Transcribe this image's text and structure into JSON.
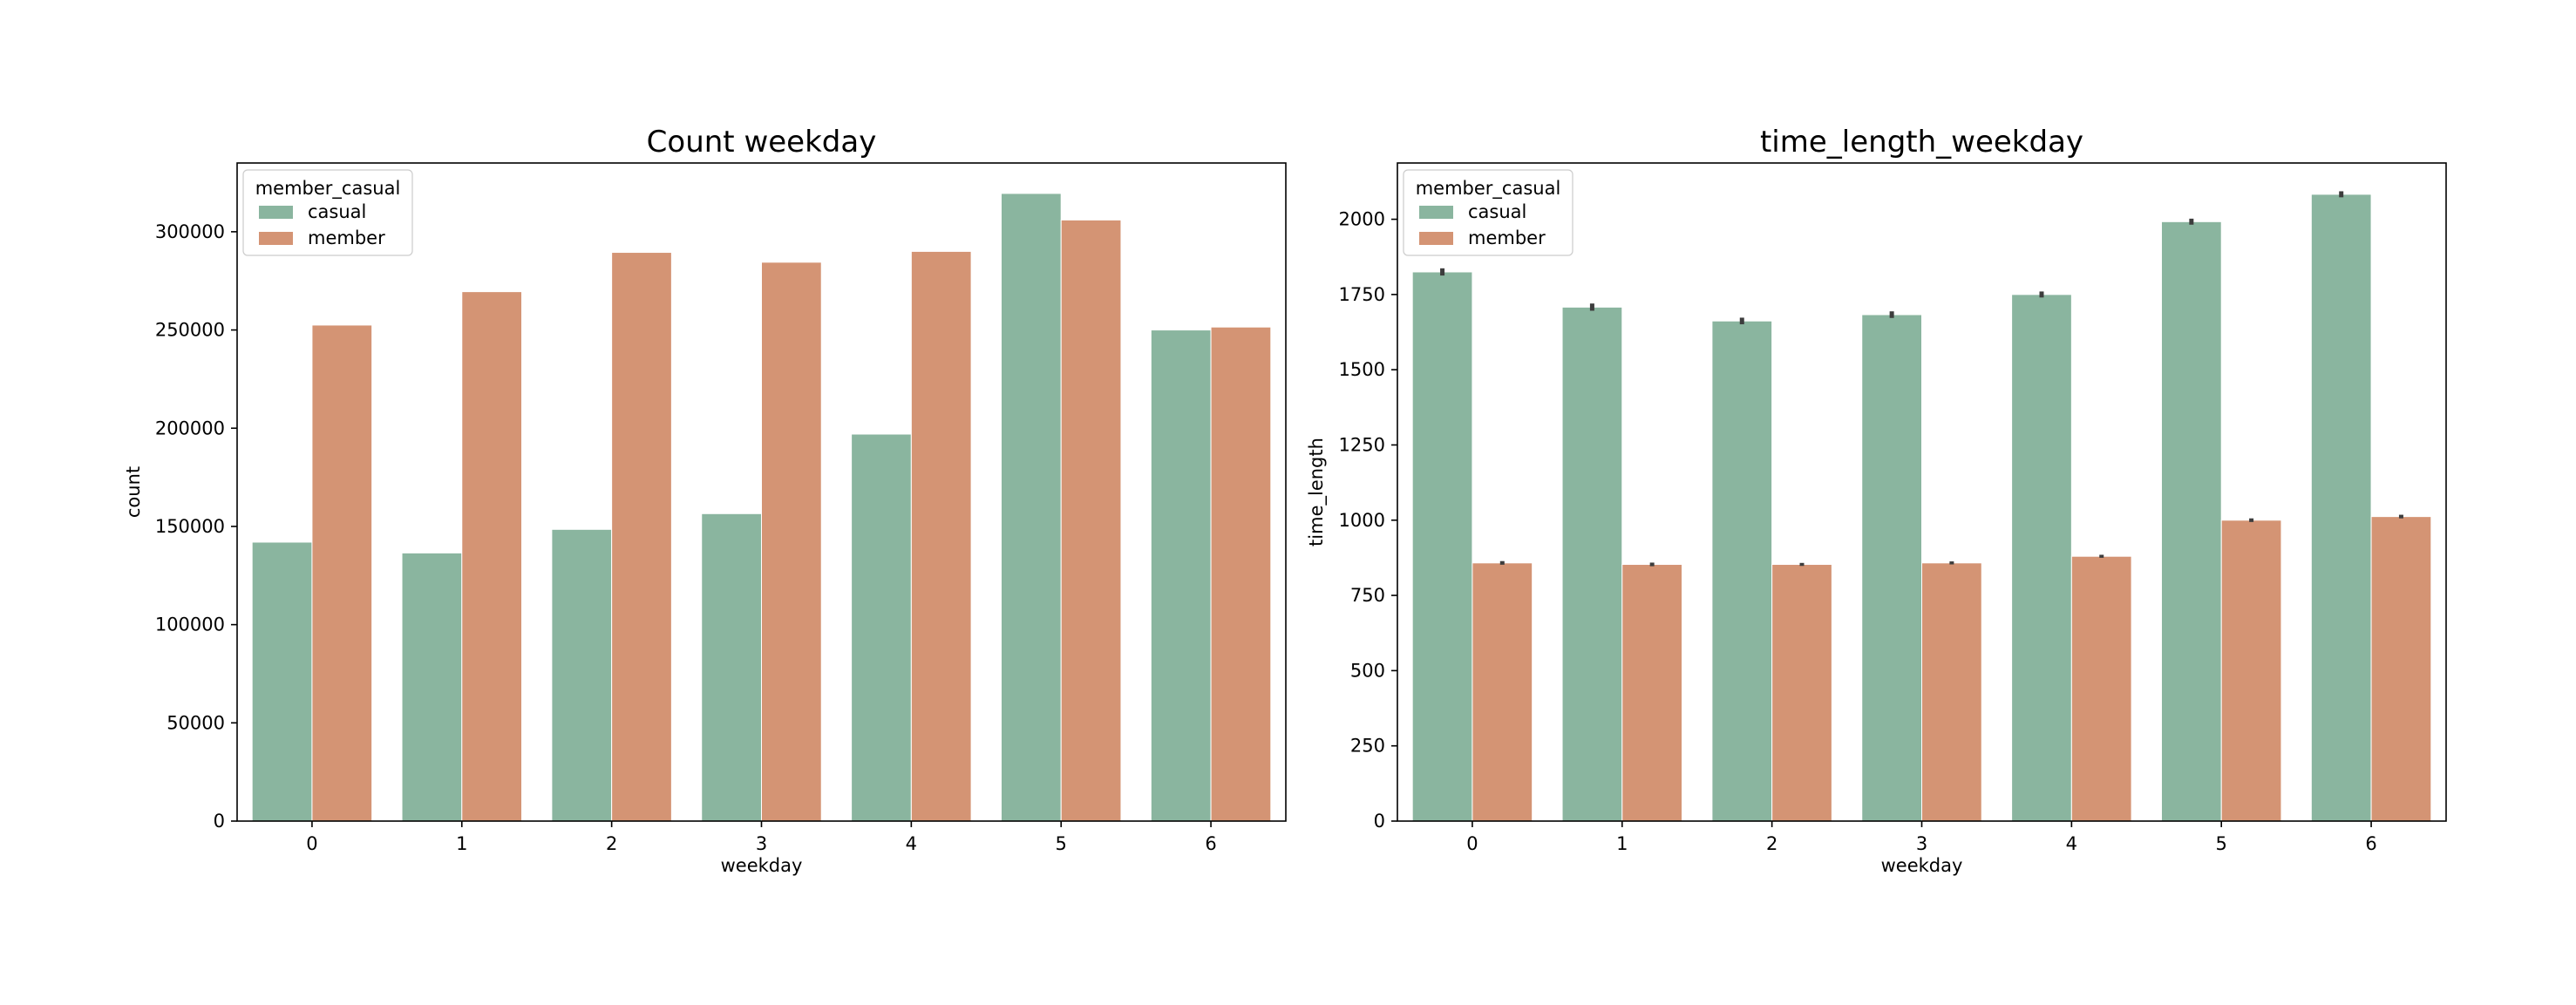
{
  "chart_data": [
    {
      "type": "bar",
      "title": "Count weekday",
      "xlabel": "weekday",
      "ylabel": "count",
      "categories": [
        "0",
        "1",
        "2",
        "3",
        "4",
        "5",
        "6"
      ],
      "ylim": [
        0,
        335000
      ],
      "yticks": [
        0,
        50000,
        100000,
        150000,
        200000,
        250000,
        300000
      ],
      "yticklabels": [
        "0",
        "50000",
        "100000",
        "150000",
        "200000",
        "250000",
        "300000"
      ],
      "grid": false,
      "legend": {
        "title": "member_casual",
        "placement": "top-left"
      },
      "series": [
        {
          "name": "casual",
          "color": "#8ab59f",
          "values": [
            142000,
            136500,
            148500,
            156500,
            197000,
            319500,
            250000
          ]
        },
        {
          "name": "member",
          "color": "#d49474",
          "values": [
            252500,
            269500,
            289500,
            284500,
            290000,
            306000,
            251500
          ]
        }
      ]
    },
    {
      "type": "bar",
      "title": "time_length_weekday",
      "xlabel": "weekday",
      "ylabel": "time_length",
      "categories": [
        "0",
        "1",
        "2",
        "3",
        "4",
        "5",
        "6"
      ],
      "ylim": [
        0,
        2187
      ],
      "yticks": [
        0,
        250,
        500,
        750,
        1000,
        1250,
        1500,
        1750,
        2000
      ],
      "yticklabels": [
        "0",
        "250",
        "500",
        "750",
        "1000",
        "1250",
        "1500",
        "1750",
        "2000"
      ],
      "grid": false,
      "legend": {
        "title": "member_casual",
        "placement": "top-left"
      },
      "series": [
        {
          "name": "casual",
          "color": "#8ab59f",
          "values": [
            1825,
            1708,
            1662,
            1683,
            1750,
            1992,
            2083
          ],
          "errors": [
            12,
            12,
            11,
            11,
            10,
            10,
            10
          ]
        },
        {
          "name": "member",
          "color": "#d49474",
          "values": [
            858,
            853,
            853,
            858,
            880,
            1000,
            1012
          ],
          "errors": [
            6,
            6,
            5,
            5,
            5,
            6,
            6
          ]
        }
      ]
    }
  ]
}
